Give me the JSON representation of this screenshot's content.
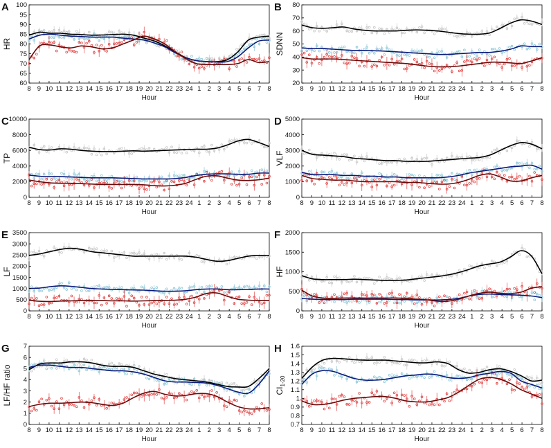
{
  "chart_data": [
    {
      "panel": "A",
      "type": "line",
      "ylabel": "HR",
      "xlabel": "Hour",
      "ylim": [
        60,
        100
      ],
      "yticks": [
        60,
        65,
        70,
        75,
        80,
        85,
        90,
        95,
        100
      ],
      "xticks": [
        "8",
        "9",
        "10",
        "11",
        "12",
        "13",
        "14",
        "15",
        "16",
        "17",
        "18",
        "19",
        "20",
        "21",
        "22",
        "23",
        "24",
        "1",
        "2",
        "3",
        "4",
        "5",
        "6",
        "7",
        "8"
      ],
      "grid": false,
      "series": [
        {
          "name": "gray",
          "color": "#c8c8c8",
          "fit_color": "#000000",
          "fit": [
            84.5,
            86,
            85.5,
            85.5,
            85,
            84.8,
            84.5,
            84.6,
            84.8,
            85,
            84.5,
            83,
            81.5,
            79,
            76,
            73,
            71.5,
            71,
            71,
            72,
            76,
            82,
            83.5,
            84
          ]
        },
        {
          "name": "blue",
          "color": "#8fc8d8",
          "fit_color": "#0a1a7a",
          "fit": [
            82.5,
            84.5,
            85,
            84.5,
            84,
            83.8,
            83.5,
            83.5,
            83.5,
            83,
            82.5,
            82,
            80.5,
            78.5,
            75.5,
            73,
            71.5,
            71,
            70.8,
            71,
            73.5,
            78,
            81.5,
            82
          ]
        },
        {
          "name": "red",
          "color": "#e04848",
          "fit_color": "#6b0a0a",
          "fit": [
            72,
            79,
            79.5,
            78.5,
            78,
            79,
            78.5,
            77.5,
            78,
            80,
            82,
            84,
            82.5,
            80,
            76,
            72.5,
            70,
            69.5,
            69.5,
            69.5,
            70,
            72,
            70.5,
            71
          ]
        }
      ]
    },
    {
      "panel": "B",
      "type": "line",
      "ylabel": "SDNN",
      "xlabel": "Hour",
      "ylim": [
        20,
        80
      ],
      "yticks": [
        20,
        30,
        40,
        50,
        60,
        70,
        80
      ],
      "xticks": [
        "8",
        "9",
        "10",
        "11",
        "12",
        "13",
        "14",
        "15",
        "16",
        "17",
        "18",
        "19",
        "20",
        "21",
        "22",
        "23",
        "24",
        "1",
        "2",
        "3",
        "4",
        "5",
        "6",
        "7",
        "8"
      ],
      "grid": false,
      "series": [
        {
          "name": "gray",
          "color": "#c8c8c8",
          "fit_color": "#000000",
          "fit": [
            64.5,
            62.5,
            62,
            62.5,
            63,
            61.5,
            60.5,
            60,
            60,
            60,
            60.5,
            60.8,
            60.5,
            60,
            59,
            58,
            57.5,
            57.5,
            58.5,
            62,
            66,
            68.5,
            67.5,
            65
          ]
        },
        {
          "name": "blue",
          "color": "#8fc8d8",
          "fit_color": "#0a1a7a",
          "fit": [
            47,
            46.5,
            46.5,
            46,
            45.5,
            45,
            45,
            44.8,
            44.5,
            44,
            43.5,
            43,
            42.5,
            42,
            42,
            42.5,
            43,
            43.5,
            43.5,
            44.5,
            46,
            48.5,
            48,
            48
          ]
        },
        {
          "name": "red",
          "color": "#e04848",
          "fit_color": "#6b0a0a",
          "fit": [
            39.5,
            38.5,
            38.5,
            38.5,
            38,
            37.5,
            37,
            36.5,
            36,
            35.5,
            35,
            34,
            33,
            32.5,
            32.5,
            33,
            34,
            35,
            36,
            36,
            35.5,
            35,
            37,
            39.5
          ]
        }
      ]
    },
    {
      "panel": "C",
      "type": "line",
      "ylabel": "TP",
      "xlabel": "Hour",
      "ylim": [
        0,
        10000
      ],
      "yticks": [
        0,
        2000,
        4000,
        6000,
        8000,
        10000
      ],
      "xticks": [
        "8",
        "9",
        "10",
        "11",
        "12",
        "13",
        "14",
        "15",
        "16",
        "17",
        "18",
        "19",
        "20",
        "21",
        "22",
        "23",
        "24",
        "1",
        "2",
        "3",
        "4",
        "5",
        "6",
        "7",
        "8"
      ],
      "grid": false,
      "series": [
        {
          "name": "gray",
          "color": "#c8c8c8",
          "fit_color": "#000000",
          "fit": [
            6400,
            6100,
            6050,
            6200,
            6150,
            6000,
            5900,
            5850,
            5850,
            5900,
            5950,
            5900,
            5950,
            6000,
            6050,
            6100,
            6150,
            6150,
            6300,
            6700,
            7200,
            7400,
            7000,
            6500
          ]
        },
        {
          "name": "blue",
          "color": "#8fc8d8",
          "fit_color": "#0a1a7a",
          "fit": [
            2850,
            2700,
            2650,
            2650,
            2600,
            2550,
            2500,
            2500,
            2500,
            2450,
            2400,
            2350,
            2350,
            2350,
            2400,
            2550,
            2800,
            2950,
            3000,
            3000,
            2950,
            2950,
            3100,
            3100
          ]
        },
        {
          "name": "red",
          "color": "#e04848",
          "fit_color": "#6b0a0a",
          "fit": [
            2200,
            2000,
            1850,
            1800,
            1800,
            1750,
            1700,
            1650,
            1650,
            1650,
            1650,
            1600,
            1500,
            1450,
            1550,
            1800,
            2300,
            2700,
            2750,
            2450,
            2200,
            2150,
            2250,
            2450
          ]
        }
      ]
    },
    {
      "panel": "D",
      "type": "line",
      "ylabel": "VLF",
      "xlabel": "Hour",
      "ylim": [
        0,
        5000
      ],
      "yticks": [
        0,
        1000,
        2000,
        3000,
        4000,
        5000
      ],
      "xticks": [
        "8",
        "9",
        "10",
        "11",
        "12",
        "13",
        "14",
        "15",
        "16",
        "17",
        "18",
        "19",
        "20",
        "21",
        "22",
        "23",
        "24",
        "1",
        "2",
        "3",
        "4",
        "5",
        "6",
        "7",
        "8"
      ],
      "grid": false,
      "series": [
        {
          "name": "gray",
          "color": "#c8c8c8",
          "fit_color": "#000000",
          "fit": [
            3000,
            2750,
            2700,
            2650,
            2600,
            2500,
            2450,
            2400,
            2350,
            2350,
            2300,
            2300,
            2300,
            2350,
            2400,
            2450,
            2500,
            2550,
            2700,
            3000,
            3300,
            3500,
            3400,
            3100
          ]
        },
        {
          "name": "blue",
          "color": "#8fc8d8",
          "fit_color": "#0a1a7a",
          "fit": [
            1600,
            1450,
            1450,
            1450,
            1400,
            1400,
            1350,
            1350,
            1300,
            1300,
            1250,
            1250,
            1250,
            1250,
            1300,
            1400,
            1550,
            1650,
            1750,
            1850,
            1950,
            2000,
            2050,
            1800
          ]
        },
        {
          "name": "red",
          "color": "#e04848",
          "fit_color": "#6b0a0a",
          "fit": [
            1400,
            1200,
            1150,
            1100,
            1100,
            1050,
            1000,
            1000,
            1000,
            1000,
            950,
            950,
            900,
            850,
            850,
            950,
            1150,
            1400,
            1500,
            1300,
            1050,
            1050,
            1250,
            1400
          ]
        }
      ]
    },
    {
      "panel": "E",
      "type": "line",
      "ylabel": "LF",
      "xlabel": "Hour",
      "ylim": [
        0,
        3500
      ],
      "yticks": [
        0,
        500,
        1000,
        1500,
        2000,
        2500,
        3000,
        3500
      ],
      "xticks": [
        "8",
        "9",
        "10",
        "11",
        "12",
        "13",
        "14",
        "15",
        "16",
        "17",
        "18",
        "19",
        "20",
        "21",
        "22",
        "23",
        "24",
        "1",
        "2",
        "3",
        "4",
        "5",
        "6",
        "7",
        "8"
      ],
      "grid": false,
      "series": [
        {
          "name": "gray",
          "color": "#c8c8c8",
          "fit_color": "#000000",
          "fit": [
            2480,
            2550,
            2650,
            2750,
            2800,
            2750,
            2650,
            2600,
            2550,
            2500,
            2450,
            2450,
            2450,
            2450,
            2450,
            2450,
            2400,
            2300,
            2220,
            2250,
            2350,
            2450,
            2480,
            2480
          ]
        },
        {
          "name": "blue",
          "color": "#8fc8d8",
          "fit_color": "#0a1a7a",
          "fit": [
            1000,
            1020,
            1080,
            1120,
            1100,
            1050,
            1000,
            980,
            960,
            950,
            940,
            930,
            900,
            880,
            880,
            900,
            950,
            980,
            980,
            950,
            950,
            960,
            980,
            980
          ]
        },
        {
          "name": "red",
          "color": "#e04848",
          "fit_color": "#6b0a0a",
          "fit": [
            480,
            430,
            420,
            440,
            450,
            460,
            460,
            460,
            450,
            450,
            440,
            450,
            460,
            470,
            480,
            520,
            620,
            780,
            800,
            650,
            520,
            480,
            470,
            470
          ]
        }
      ]
    },
    {
      "panel": "F",
      "type": "line",
      "ylabel": "HF",
      "xlabel": "Hour",
      "ylim": [
        0,
        2000
      ],
      "yticks": [
        0,
        500,
        1000,
        1500,
        2000
      ],
      "xticks": [
        "8",
        "9",
        "10",
        "11",
        "12",
        "13",
        "14",
        "15",
        "16",
        "17",
        "18",
        "19",
        "20",
        "21",
        "22",
        "23",
        "24",
        "1",
        "2",
        "3",
        "4",
        "5",
        "6",
        "7",
        "8"
      ],
      "grid": false,
      "series": [
        {
          "name": "gray",
          "color": "#c8c8c8",
          "fit_color": "#000000",
          "fit": [
            900,
            820,
            800,
            800,
            800,
            810,
            800,
            790,
            780,
            780,
            790,
            820,
            850,
            880,
            920,
            980,
            1060,
            1150,
            1200,
            1250,
            1380,
            1540,
            1400,
            950
          ]
        },
        {
          "name": "blue",
          "color": "#8fc8d8",
          "fit_color": "#0a1a7a",
          "fit": [
            320,
            300,
            290,
            290,
            290,
            300,
            300,
            300,
            300,
            290,
            290,
            280,
            280,
            280,
            290,
            320,
            380,
            420,
            430,
            420,
            410,
            400,
            380,
            340
          ]
        },
        {
          "name": "red",
          "color": "#e04848",
          "fit_color": "#6b0a0a",
          "fit": [
            530,
            380,
            330,
            320,
            330,
            330,
            330,
            330,
            330,
            330,
            320,
            300,
            280,
            250,
            250,
            300,
            380,
            450,
            480,
            450,
            440,
            480,
            580,
            620
          ]
        }
      ]
    },
    {
      "panel": "G",
      "type": "line",
      "ylabel": "LF/HF ratio",
      "xlabel": "Hour",
      "ylim": [
        0,
        7
      ],
      "yticks": [
        0,
        1,
        2,
        3,
        4,
        5,
        6,
        7
      ],
      "xticks": [
        "8",
        "9",
        "10",
        "11",
        "12",
        "13",
        "14",
        "15",
        "16",
        "17",
        "18",
        "19",
        "20",
        "21",
        "22",
        "23",
        "24",
        "1",
        "2",
        "3",
        "4",
        "5",
        "6",
        "7",
        "8"
      ],
      "grid": false,
      "series": [
        {
          "name": "gray",
          "color": "#c8c8c8",
          "fit_color": "#000000",
          "fit": [
            4.9,
            5.4,
            5.5,
            5.5,
            5.6,
            5.6,
            5.5,
            5.3,
            5.2,
            5.2,
            5.1,
            4.8,
            4.5,
            4.3,
            4.1,
            4.0,
            3.9,
            3.8,
            3.6,
            3.4,
            3.35,
            3.4,
            4.1,
            5.0
          ]
        },
        {
          "name": "blue",
          "color": "#8fc8d8",
          "fit_color": "#0a1a7a",
          "fit": [
            5.1,
            5.3,
            5.3,
            5.2,
            5.1,
            5.1,
            5.0,
            4.9,
            4.8,
            4.8,
            4.7,
            4.5,
            4.2,
            3.9,
            3.8,
            3.8,
            3.75,
            3.7,
            3.5,
            3.2,
            2.9,
            2.8,
            3.6,
            4.8
          ]
        },
        {
          "name": "red",
          "color": "#e04848",
          "fit_color": "#6b0a0a",
          "fit": [
            1.6,
            1.8,
            1.9,
            1.9,
            1.95,
            2.0,
            1.95,
            1.8,
            1.7,
            1.9,
            2.4,
            2.8,
            2.95,
            2.7,
            2.55,
            2.6,
            2.75,
            2.75,
            2.5,
            2.0,
            1.6,
            1.4,
            1.4,
            1.5
          ]
        }
      ]
    },
    {
      "panel": "H",
      "type": "line",
      "ylabel": "CI",
      "ylabel_sub": "1-20",
      "xlabel": "Hour",
      "ylim": [
        0.7,
        1.6
      ],
      "yticks": [
        "0.7",
        "0.8",
        "0.9",
        "1",
        "1.1",
        "1.2",
        "1.3",
        "1.4",
        "1.5",
        "1.6"
      ],
      "xticks": [
        "8",
        "9",
        "10",
        "11",
        "12",
        "13",
        "14",
        "15",
        "16",
        "17",
        "18",
        "19",
        "20",
        "21",
        "22",
        "23",
        "24",
        "1",
        "2",
        "3",
        "4",
        "5",
        "6",
        "7",
        "8"
      ],
      "grid": false,
      "series": [
        {
          "name": "gray",
          "color": "#c8c8c8",
          "fit_color": "#000000",
          "fit": [
            1.23,
            1.36,
            1.44,
            1.46,
            1.455,
            1.445,
            1.44,
            1.44,
            1.44,
            1.43,
            1.42,
            1.41,
            1.41,
            1.42,
            1.4,
            1.33,
            1.29,
            1.3,
            1.33,
            1.34,
            1.31,
            1.26,
            1.2,
            1.21
          ]
        },
        {
          "name": "blue",
          "color": "#8fc8d8",
          "fit_color": "#0a1a7a",
          "fit": [
            1.16,
            1.28,
            1.32,
            1.31,
            1.27,
            1.23,
            1.21,
            1.21,
            1.22,
            1.24,
            1.26,
            1.27,
            1.28,
            1.27,
            1.24,
            1.23,
            1.24,
            1.27,
            1.29,
            1.31,
            1.29,
            1.2,
            1.16,
            1.12
          ]
        },
        {
          "name": "red",
          "color": "#e04848",
          "fit_color": "#6b0a0a",
          "fit": [
            0.97,
            0.93,
            0.93,
            0.95,
            0.98,
            1.0,
            1.01,
            1.02,
            1.02,
            1.0,
            0.97,
            0.96,
            0.96,
            0.98,
            1.01,
            1.07,
            1.15,
            1.22,
            1.24,
            1.22,
            1.17,
            1.1,
            1.05,
            1.0
          ]
        }
      ]
    }
  ]
}
